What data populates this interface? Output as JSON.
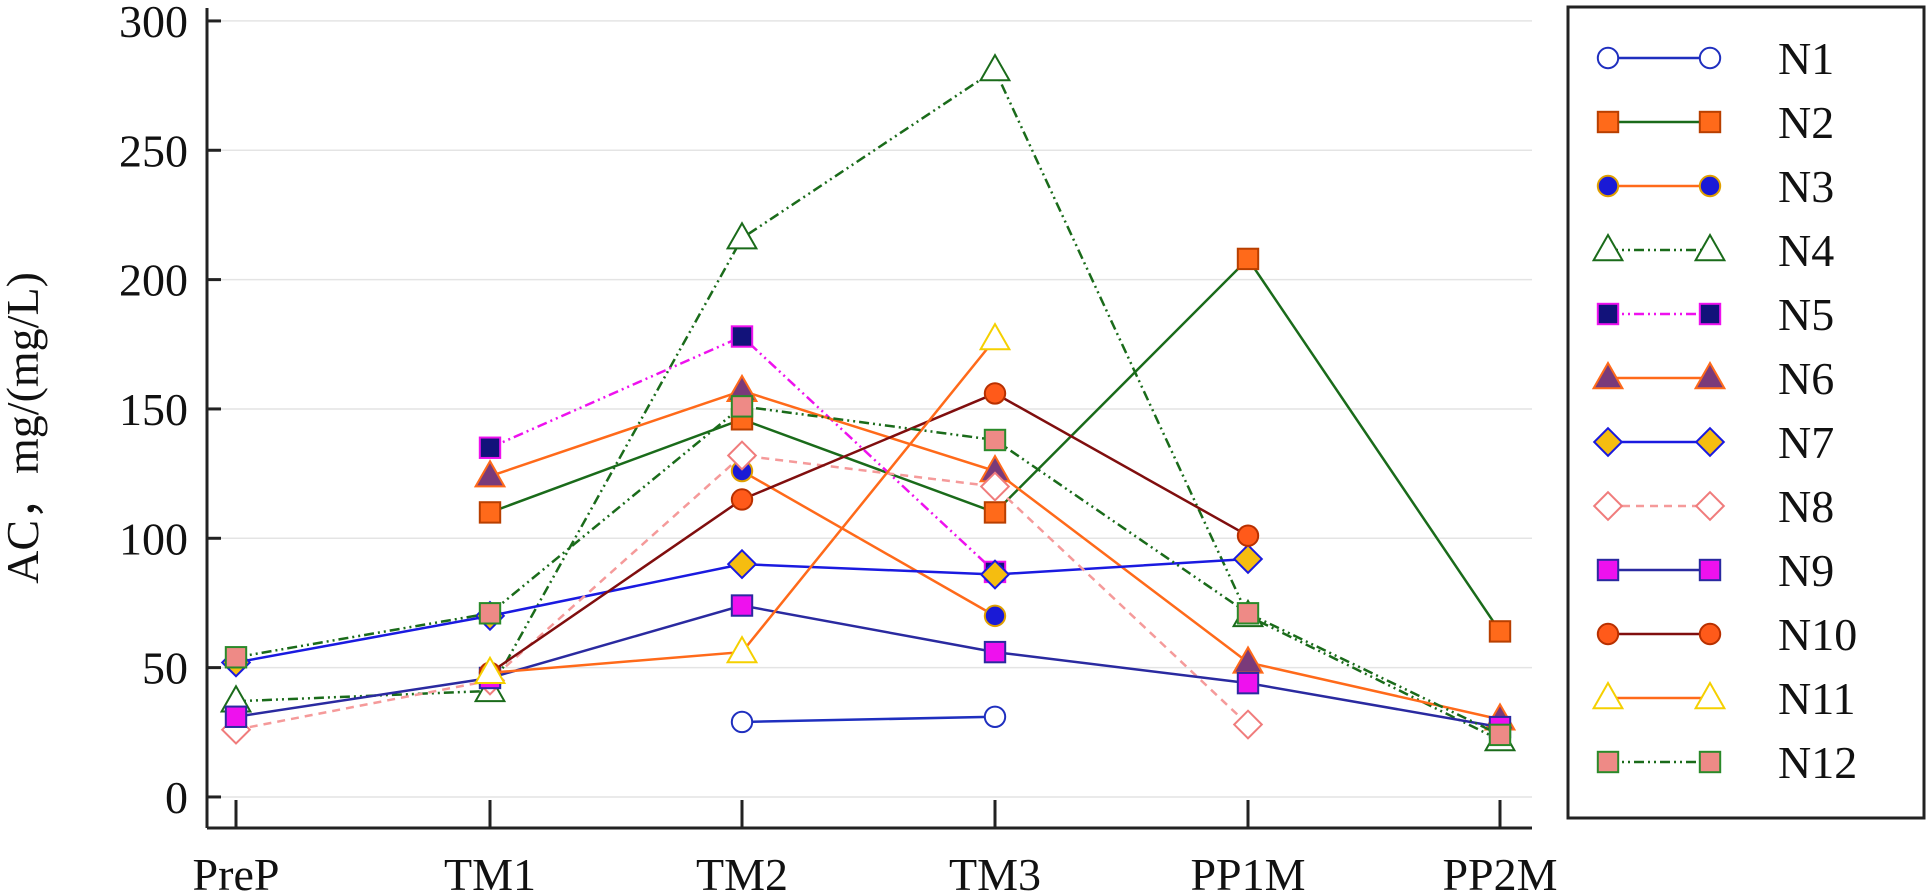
{
  "chart_data": {
    "type": "line",
    "categories": [
      "PreP",
      "TM1",
      "TM2",
      "TM3",
      "PP1M",
      "PP2M"
    ],
    "ylabel": "AC，mg/(mg/L)",
    "xlabel": "",
    "ylim": [
      -12,
      305
    ],
    "yticks": [
      0,
      50,
      100,
      150,
      200,
      250,
      300
    ],
    "grid": "horizontal",
    "legend_position": "right",
    "series": [
      {
        "name": "N1",
        "values": [
          null,
          null,
          29,
          31,
          null,
          null
        ],
        "color": "#1f2fbf",
        "marker": "circle",
        "markerFill": "#ffffff",
        "markerStroke": "#1f2fbf",
        "dash": ""
      },
      {
        "name": "N2",
        "values": [
          null,
          110,
          146,
          110,
          208,
          64
        ],
        "color": "#1a6b1a",
        "marker": "square",
        "markerFill": "#ff6a1a",
        "markerStroke": "#b83f00",
        "dash": ""
      },
      {
        "name": "N3",
        "values": [
          null,
          null,
          126,
          70,
          null,
          null
        ],
        "color": "#ff6a1a",
        "marker": "circle",
        "markerFill": "#1a1ad6",
        "markerStroke": "#e0a000",
        "dash": ""
      },
      {
        "name": "N4",
        "values": [
          37,
          41,
          216,
          281,
          70,
          22
        ],
        "color": "#1a6b1a",
        "marker": "triangle",
        "markerFill": "#ffffff",
        "markerStroke": "#1a6b1a",
        "dash": "10,4,2,4,2,4"
      },
      {
        "name": "N5",
        "values": [
          null,
          135,
          178,
          87,
          null,
          null
        ],
        "color": "#ee11ee",
        "marker": "square",
        "markerFill": "#12127a",
        "markerStroke": "#ee11ee",
        "dash": "10,4,2,4,2,4"
      },
      {
        "name": "N6",
        "values": [
          null,
          124,
          157,
          126,
          52,
          30
        ],
        "color": "#ff6a1a",
        "marker": "triangle",
        "markerFill": "#7a3a7a",
        "markerStroke": "#ff6a1a",
        "dash": ""
      },
      {
        "name": "N7",
        "values": [
          52,
          70,
          90,
          86,
          92,
          null
        ],
        "color": "#1a1ae0",
        "marker": "diamond",
        "markerFill": "#f5bd10",
        "markerStroke": "#1a1ae0",
        "dash": ""
      },
      {
        "name": "N8",
        "values": [
          26,
          45,
          132,
          120,
          28,
          null
        ],
        "color": "#f59a9a",
        "marker": "diamond",
        "markerFill": "#ffffff",
        "markerStroke": "#f07c7c",
        "dash": "8,6"
      },
      {
        "name": "N9",
        "values": [
          31,
          46,
          74,
          56,
          44,
          27
        ],
        "color": "#2a2aa0",
        "marker": "square",
        "markerFill": "#ee11ee",
        "markerStroke": "#2a2aa0",
        "dash": ""
      },
      {
        "name": "N10",
        "values": [
          null,
          48,
          115,
          156,
          101,
          null
        ],
        "color": "#800e0e",
        "marker": "circle",
        "markerFill": "#ff5a1a",
        "markerStroke": "#b83000",
        "dash": ""
      },
      {
        "name": "N11",
        "values": [
          null,
          48,
          56,
          177,
          null,
          null
        ],
        "color": "#ff6a1a",
        "marker": "triangle",
        "markerFill": "#ffffff",
        "markerStroke": "#f5d000",
        "dash": ""
      },
      {
        "name": "N12",
        "values": [
          54,
          71,
          151,
          138,
          71,
          24
        ],
        "color": "#1a6b1a",
        "marker": "square",
        "markerFill": "#ee8a86",
        "markerStroke": "#2a8a2a",
        "dash": "10,4,2,4,2,4"
      }
    ]
  }
}
